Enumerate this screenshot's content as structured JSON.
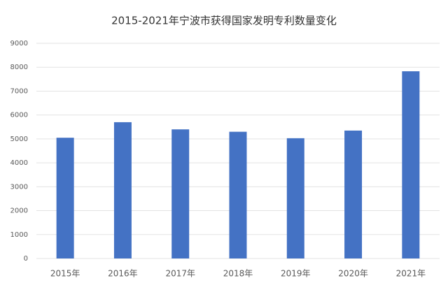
{
  "chart_data": {
    "type": "bar",
    "title": "2015-2021年宁波市获得国家发明专利数量变化",
    "categories": [
      "2015年",
      "2016年",
      "2017年",
      "2018年",
      "2019年",
      "2020年",
      "2021年"
    ],
    "values": [
      5050,
      5700,
      5400,
      5300,
      5030,
      5350,
      7830
    ],
    "color": "#4472c4",
    "ylim": [
      0,
      9000
    ],
    "yticks": [
      0,
      1000,
      2000,
      3000,
      4000,
      5000,
      6000,
      7000,
      8000,
      9000
    ],
    "grid": true
  }
}
